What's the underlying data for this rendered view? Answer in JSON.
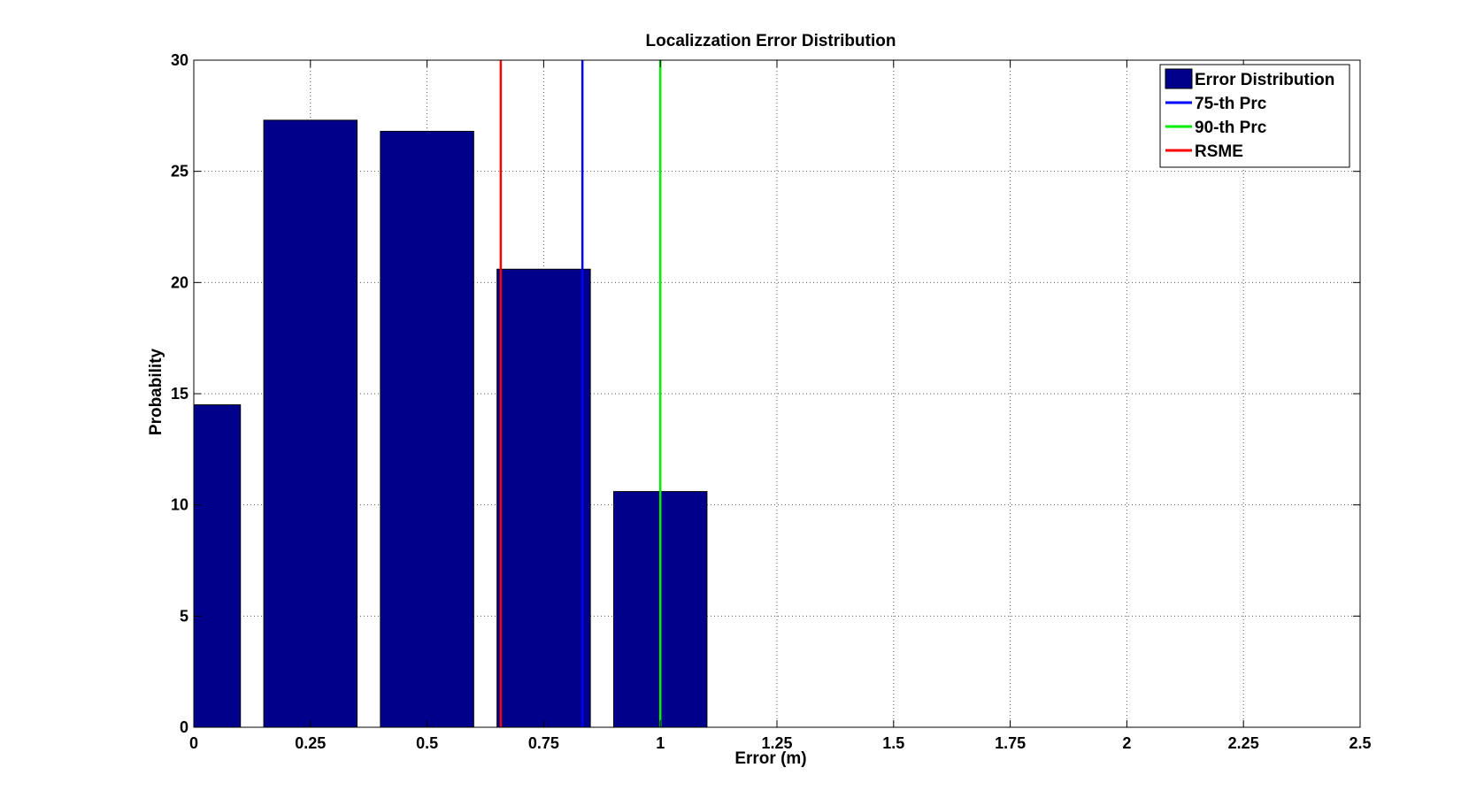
{
  "chart_data": {
    "type": "bar",
    "title": "Localizzation Error Distribution",
    "xlabel": "Error (m)",
    "ylabel": "Probability",
    "xlim": [
      0,
      2.5
    ],
    "ylim": [
      0,
      30
    ],
    "x_ticks": [
      0,
      0.25,
      0.5,
      0.75,
      1,
      1.25,
      1.5,
      1.75,
      2,
      2.25,
      2.5
    ],
    "x_tick_labels": [
      "0",
      "0.25",
      "0.5",
      "0.75",
      "1",
      "1.25",
      "1.5",
      "1.75",
      "2",
      "2.25",
      "2.5"
    ],
    "y_ticks": [
      0,
      5,
      10,
      15,
      20,
      25,
      30
    ],
    "y_tick_labels": [
      "0",
      "5",
      "10",
      "15",
      "20",
      "25",
      "30"
    ],
    "grid": true,
    "bar_width": 0.2,
    "series": [
      {
        "name": "Error Distribution",
        "color": "#00008b",
        "x": [
          0,
          0.25,
          0.5,
          0.75,
          1
        ],
        "values": [
          14.5,
          27.3,
          26.8,
          20.6,
          10.6
        ]
      }
    ],
    "reference_lines": [
      {
        "name": "75-th Prc",
        "x": 0.833,
        "color": "#0000ff"
      },
      {
        "name": "90-th Prc",
        "x": 1.0,
        "color": "#00ee00"
      },
      {
        "name": "RSME",
        "x": 0.658,
        "color": "#ff0000"
      }
    ],
    "legend": {
      "placement": "top-right",
      "entries": [
        {
          "label": "Error Distribution",
          "kind": "bar",
          "color": "#00008b"
        },
        {
          "label": "75-th Prc",
          "kind": "line",
          "color": "#0000ff"
        },
        {
          "label": "90-th Prc",
          "kind": "line",
          "color": "#00ee00"
        },
        {
          "label": "RSME",
          "kind": "line",
          "color": "#ff0000"
        }
      ]
    }
  }
}
